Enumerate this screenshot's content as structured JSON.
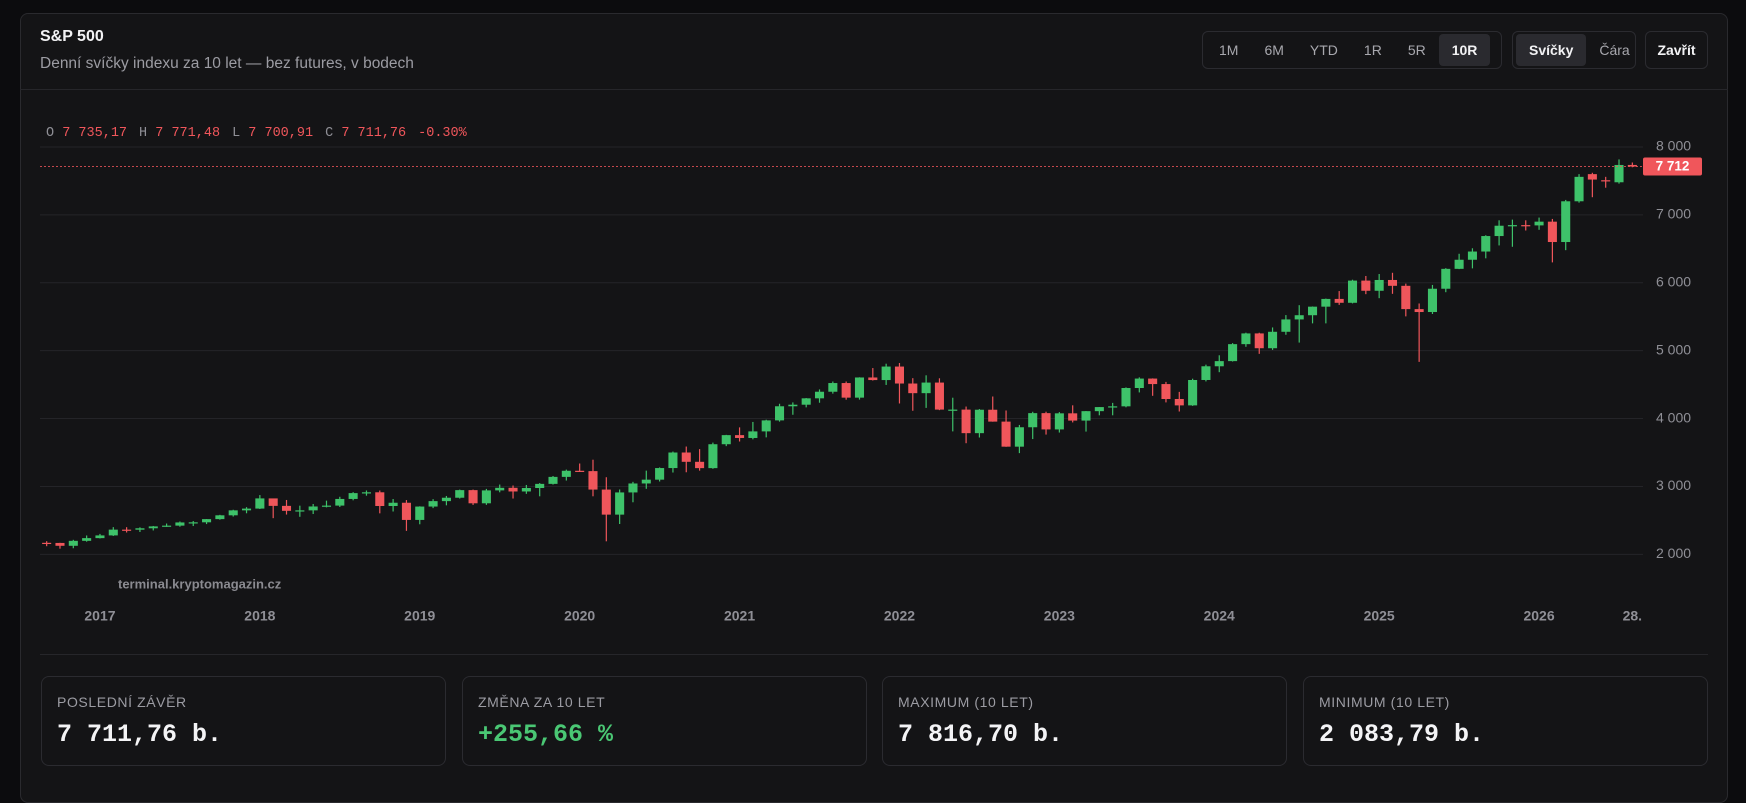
{
  "header": {
    "title": "S&P 500",
    "subtitle": "Denní svíčky indexu za 10 let — bez futures, v bodech"
  },
  "toolbar": {
    "ranges": [
      "1M",
      "6M",
      "YTD",
      "1R",
      "5R",
      "10R"
    ],
    "active_range": 5,
    "views": [
      "Svíčky",
      "Čára"
    ],
    "active_view": 0,
    "close": "Zavřít"
  },
  "ohlc_legend": [
    {
      "label": "O",
      "value": "7 735,17"
    },
    {
      "label": "H",
      "value": "7 771,48"
    },
    {
      "label": "L",
      "value": "7 700,91"
    },
    {
      "label": "C",
      "value": "7 711,76"
    }
  ],
  "ohlc_change": "-0.30%",
  "chart_data": {
    "type": "candlestick",
    "watermark": "terminal.kryptomagazin.cz",
    "up_color": "#3ec26a",
    "down_color": "#f0565b",
    "grid": true,
    "ylim": [
      1500,
      8300
    ],
    "yticks": [
      {
        "value": 2000,
        "label": "2 000"
      },
      {
        "value": 3000,
        "label": "3 000"
      },
      {
        "value": 4000,
        "label": "4 000"
      },
      {
        "value": 5000,
        "label": "5 000"
      },
      {
        "value": 6000,
        "label": "6 000"
      },
      {
        "value": 7000,
        "label": "7 000"
      },
      {
        "value": 8000,
        "label": "8 000"
      }
    ],
    "xticks": [
      {
        "value": 4,
        "label": "2017"
      },
      {
        "value": 16,
        "label": "2018"
      },
      {
        "value": 28,
        "label": "2019"
      },
      {
        "value": 40,
        "label": "2020"
      },
      {
        "value": 52,
        "label": "2021"
      },
      {
        "value": 64,
        "label": "2022"
      },
      {
        "value": 76,
        "label": "2023"
      },
      {
        "value": 88,
        "label": "2024"
      },
      {
        "value": 100,
        "label": "2025"
      },
      {
        "value": 112,
        "label": "2026"
      },
      {
        "value": 119,
        "label": "28."
      }
    ],
    "last_label": "7 712",
    "open": [
      2170,
      2168,
      2126,
      2199,
      2239,
      2279,
      2364,
      2363,
      2384,
      2412,
      2423,
      2470,
      2472,
      2519,
      2575,
      2648,
      2674,
      2824,
      2714,
      2641,
      2648,
      2705,
      2718,
      2816,
      2902,
      2914,
      2712,
      2760,
      2507,
      2704,
      2784,
      2834,
      2946,
      2752,
      2942,
      2980,
      2926,
      2977,
      3038,
      3141,
      3231,
      3226,
      2954,
      2585,
      2912,
      3044,
      3100,
      3271,
      3500,
      3363,
      3270,
      3622,
      3756,
      3714,
      3811,
      3973,
      4181,
      4204,
      4298,
      4395,
      4523,
      4308,
      4605,
      4567,
      4766,
      4516,
      4374,
      4530,
      4132,
      4132,
      3785,
      4130,
      3955,
      3586,
      3872,
      4080,
      3840,
      4077,
      3970,
      4109,
      4169,
      4180,
      4450,
      4589,
      4508,
      4288,
      4194,
      4568,
      4770,
      4846,
      5096,
      5254,
      5036,
      5278,
      5460,
      5522,
      5648,
      5762,
      5705,
      6032,
      5882,
      6041,
      5955,
      5612,
      5569,
      5912,
      6205,
      6339,
      6460,
      6688,
      6840,
      6849,
      6845,
      6900,
      6600,
      7200,
      7600,
      7510,
      7480,
      7735.17
    ],
    "high": [
      2194,
      2170,
      2214,
      2278,
      2301,
      2401,
      2400,
      2398,
      2418,
      2454,
      2484,
      2491,
      2520,
      2582,
      2657,
      2695,
      2873,
      2789,
      2801,
      2717,
      2742,
      2791,
      2848,
      2916,
      2941,
      2940,
      2815,
      2800,
      2708,
      2813,
      2860,
      2954,
      2954,
      2964,
      3028,
      3014,
      3022,
      3050,
      3154,
      3248,
      3338,
      3394,
      3136,
      2955,
      3068,
      3233,
      3280,
      3514,
      3588,
      3550,
      3646,
      3760,
      3870,
      3950,
      3983,
      4218,
      4238,
      4302,
      4429,
      4546,
      4546,
      4608,
      4744,
      4808,
      4818,
      4595,
      4637,
      4593,
      4307,
      4177,
      4140,
      4325,
      4119,
      3906,
      4100,
      4101,
      4095,
      4195,
      4111,
      4170,
      4231,
      4459,
      4607,
      4592,
      4540,
      4393,
      4587,
      4794,
      4932,
      5111,
      5265,
      5264,
      5342,
      5524,
      5670,
      5651,
      5767,
      5878,
      6045,
      6100,
      6129,
      6147,
      5987,
      5695,
      5968,
      6215,
      6427,
      6508,
      6700,
      6920,
      6930,
      6920,
      6960,
      6940,
      7220,
      7600,
      7620,
      7560,
      7816.7,
      7771.48
    ],
    "low": [
      2120,
      2083.79,
      2090,
      2187,
      2234,
      2271,
      2322,
      2329,
      2352,
      2405,
      2407,
      2417,
      2446,
      2510,
      2557,
      2605,
      2668,
      2533,
      2586,
      2553,
      2594,
      2692,
      2698,
      2796,
      2864,
      2604,
      2631,
      2346,
      2443,
      2681,
      2722,
      2822,
      2728,
      2729,
      2914,
      2822,
      2891,
      2855,
      3028,
      3087,
      3214,
      2855,
      2192,
      2447,
      2767,
      2965,
      3073,
      3205,
      3209,
      3233,
      3260,
      3594,
      3662,
      3694,
      3723,
      3955,
      4056,
      4165,
      4233,
      4367,
      4278,
      4279,
      4560,
      4495,
      4222,
      4115,
      4157,
      4124,
      3811,
      3637,
      3721,
      3954,
      3584,
      3491,
      3698,
      3764,
      3794,
      3943,
      3808,
      4048,
      4048,
      4166,
      4385,
      4335,
      4238,
      4104,
      4187,
      4547,
      4683,
      4840,
      5057,
      4953,
      5011,
      5234,
      5119,
      5402,
      5402,
      5674,
      5696,
      5832,
      5773,
      5837,
      5505,
      4835,
      5540,
      5861,
      6201,
      6212,
      6360,
      6550,
      6530,
      6770,
      6780,
      6300,
      6480,
      7180,
      7260,
      7400,
      7460,
      7700.91
    ],
    "close": [
      2168,
      2126,
      2199,
      2239,
      2279,
      2364,
      2363,
      2384,
      2412,
      2423,
      2470,
      2472,
      2519,
      2575,
      2648,
      2674,
      2824,
      2714,
      2641,
      2648,
      2705,
      2718,
      2816,
      2902,
      2914,
      2712,
      2760,
      2507,
      2704,
      2784,
      2834,
      2946,
      2752,
      2942,
      2980,
      2926,
      2977,
      3038,
      3141,
      3231,
      3226,
      2954,
      2585,
      2912,
      3044,
      3100,
      3271,
      3500,
      3363,
      3270,
      3622,
      3756,
      3714,
      3811,
      3973,
      4181,
      4204,
      4298,
      4395,
      4523,
      4308,
      4605,
      4567,
      4766,
      4516,
      4374,
      4530,
      4132,
      4132,
      3785,
      4130,
      3955,
      3586,
      3872,
      4080,
      3840,
      4077,
      3970,
      4109,
      4169,
      4180,
      4450,
      4589,
      4508,
      4288,
      4194,
      4568,
      4770,
      4846,
      5096,
      5254,
      5036,
      5278,
      5460,
      5522,
      5648,
      5762,
      5705,
      6032,
      5882,
      6041,
      5955,
      5612,
      5569,
      5912,
      6205,
      6339,
      6460,
      6688,
      6840,
      6849,
      6845,
      6900,
      6600,
      7200,
      7560,
      7520,
      7500,
      7735,
      7711.76
    ]
  },
  "stats": [
    {
      "label": "POSLEDNÍ ZÁVĚR",
      "value": "7 711,76 b."
    },
    {
      "label": "ZMĚNA ZA 10 LET",
      "value": "+255,66 %"
    },
    {
      "label": "MAXIMUM (10 LET)",
      "value": "7 816,70 b."
    },
    {
      "label": "MINIMUM (10 LET)",
      "value": "2 083,79 b."
    }
  ]
}
